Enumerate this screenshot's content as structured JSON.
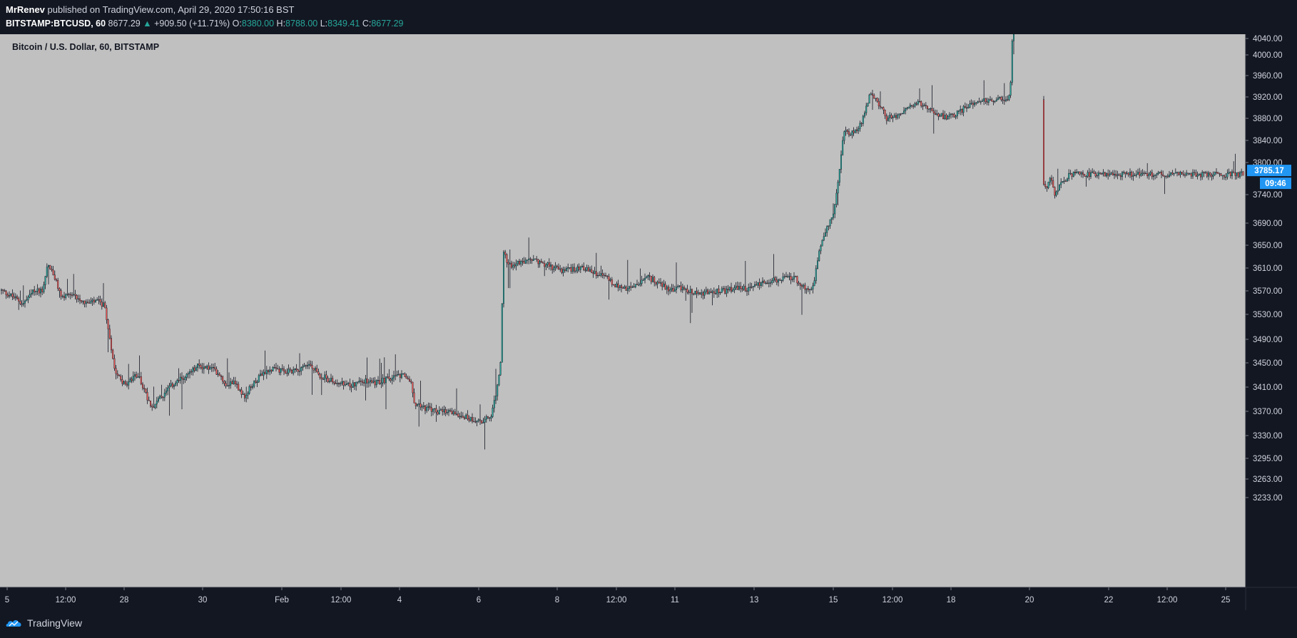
{
  "header": {
    "author": "MrRenev",
    "published_text": " published on TradingView.com, April 29, 2020 17:50:16 BST",
    "symbol_text": "BITSTAMP:BTCUSD, 60",
    "last_price": "8677.29",
    "change_text": "+909.50 (+11.71%)",
    "open_label": "O:",
    "open_value": "8380.00",
    "high_label": "H:",
    "high_value": "8788.00",
    "low_label": "L:",
    "low_value": "8349.41",
    "close_label": "C:",
    "close_value": "8677.29"
  },
  "chart_title": "Bitcoin / U.S. Dollar, 60, BITSTAMP",
  "footer": {
    "brand": "TradingView"
  },
  "colors": {
    "background": "#131722",
    "plot_background": "#c0c0c0",
    "candle_up": "#26a69a",
    "candle_down": "#ef5350",
    "wick": "#131722",
    "price_label_bg": "#2196f3"
  },
  "chart_data": {
    "type": "candlestick",
    "title": "Bitcoin / U.S. Dollar, 60, BITSTAMP",
    "ylim": [
      3203,
      4060
    ],
    "y_ticks": [
      "4040.00",
      "4000.00",
      "3960.00",
      "3920.00",
      "3880.00",
      "3840.00",
      "3800.00",
      "3740.00",
      "3690.00",
      "3650.00",
      "3610.00",
      "3570.00",
      "3530.00",
      "3490.00",
      "3450.00",
      "3410.00",
      "3370.00",
      "3330.00",
      "3295.00",
      "3263.00",
      "3233.00"
    ],
    "x_ticks": [
      "5",
      "12:00",
      "28",
      "30",
      "Feb",
      "12:00",
      "4",
      "6",
      "8",
      "12:00",
      "11",
      "13",
      "15",
      "12:00",
      "18",
      "20",
      "22",
      "12:00",
      "25"
    ],
    "last_price_label": "3785.17",
    "countdown_label": "09:46",
    "path_points": [
      [
        0,
        3573
      ],
      [
        20,
        3560
      ],
      [
        35,
        3548
      ],
      [
        50,
        3570
      ],
      [
        62,
        3572
      ],
      [
        69,
        3618
      ],
      [
        78,
        3595
      ],
      [
        88,
        3560
      ],
      [
        110,
        3560
      ],
      [
        125,
        3548
      ],
      [
        138,
        3552
      ],
      [
        148,
        3545
      ],
      [
        155,
        3500
      ],
      [
        163,
        3440
      ],
      [
        178,
        3412
      ],
      [
        195,
        3432
      ],
      [
        208,
        3395
      ],
      [
        215,
        3378
      ],
      [
        230,
        3395
      ],
      [
        245,
        3415
      ],
      [
        265,
        3430
      ],
      [
        280,
        3445
      ],
      [
        300,
        3440
      ],
      [
        310,
        3432
      ],
      [
        318,
        3415
      ],
      [
        330,
        3420
      ],
      [
        345,
        3395
      ],
      [
        360,
        3420
      ],
      [
        380,
        3440
      ],
      [
        400,
        3435
      ],
      [
        420,
        3440
      ],
      [
        435,
        3448
      ],
      [
        450,
        3430
      ],
      [
        470,
        3418
      ],
      [
        490,
        3412
      ],
      [
        510,
        3420
      ],
      [
        530,
        3418
      ],
      [
        550,
        3425
      ],
      [
        570,
        3428
      ],
      [
        578,
        3420
      ],
      [
        582,
        3385
      ],
      [
        600,
        3375
      ],
      [
        620,
        3368
      ],
      [
        640,
        3368
      ],
      [
        660,
        3358
      ],
      [
        680,
        3354
      ],
      [
        690,
        3360
      ],
      [
        698,
        3400
      ],
      [
        704,
        3450
      ],
      [
        708,
        3640
      ],
      [
        715,
        3615
      ],
      [
        730,
        3618
      ],
      [
        750,
        3625
      ],
      [
        770,
        3615
      ],
      [
        790,
        3605
      ],
      [
        810,
        3610
      ],
      [
        818,
        3612
      ],
      [
        830,
        3603
      ],
      [
        850,
        3595
      ],
      [
        865,
        3580
      ],
      [
        880,
        3572
      ],
      [
        895,
        3580
      ],
      [
        910,
        3593
      ],
      [
        925,
        3585
      ],
      [
        940,
        3572
      ],
      [
        960,
        3575
      ],
      [
        980,
        3565
      ],
      [
        1000,
        3568
      ],
      [
        1020,
        3570
      ],
      [
        1035,
        3575
      ],
      [
        1050,
        3572
      ],
      [
        1060,
        3580
      ],
      [
        1080,
        3588
      ],
      [
        1100,
        3590
      ],
      [
        1115,
        3595
      ],
      [
        1125,
        3580
      ],
      [
        1135,
        3568
      ],
      [
        1143,
        3578
      ],
      [
        1150,
        3640
      ],
      [
        1160,
        3680
      ],
      [
        1170,
        3700
      ],
      [
        1178,
        3770
      ],
      [
        1185,
        3860
      ],
      [
        1195,
        3850
      ],
      [
        1210,
        3870
      ],
      [
        1222,
        3930
      ],
      [
        1235,
        3905
      ],
      [
        1245,
        3880
      ],
      [
        1260,
        3885
      ],
      [
        1275,
        3900
      ],
      [
        1290,
        3908
      ],
      [
        1305,
        3900
      ],
      [
        1315,
        3890
      ],
      [
        1330,
        3880
      ],
      [
        1345,
        3890
      ],
      [
        1360,
        3905
      ],
      [
        1375,
        3915
      ],
      [
        1390,
        3912
      ],
      [
        1405,
        3915
      ],
      [
        1418,
        3920
      ],
      [
        1420,
        3990
      ],
      [
        1422,
        4070
      ]
    ],
    "path_points_2": [
      [
        1462,
        4070
      ],
      [
        1464,
        3760
      ],
      [
        1468,
        3752
      ],
      [
        1475,
        3770
      ],
      [
        1480,
        3740
      ],
      [
        1490,
        3760
      ],
      [
        1500,
        3775
      ],
      [
        1506,
        3778
      ]
    ]
  }
}
